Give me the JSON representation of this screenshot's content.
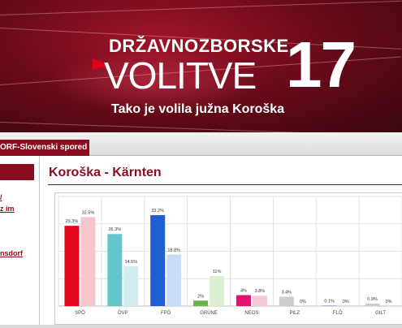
{
  "banner": {
    "line1": "DRŽAVNOZBORSKE",
    "line2": "VOLITVE",
    "year": "17",
    "subtitle": "Tako je volila južna Koroška"
  },
  "nav": {
    "tab_label": "ORF-Slovenski spored"
  },
  "sidebar": {
    "links": [
      "/",
      "z im",
      "nsdorf"
    ]
  },
  "main": {
    "title": "Koroška - Kärnten"
  },
  "colors": {
    "brand": "#8a0d1f",
    "SPÖ_2017": "#e30a1d",
    "SPÖ_2013": "#f7c6cc",
    "ÖVP_2017": "#63c6cc",
    "ÖVP_2013": "#d3eef0",
    "FPÖ_2017": "#1f5fd1",
    "FPÖ_2013": "#c9dcf5",
    "GRÜNE_2017": "#6ab24f",
    "GRÜNE_2013": "#dcefd3",
    "NEOS_2017": "#e0146f",
    "NEOS_2013": "#f6c8dc",
    "FLÖ_2017": "#2d3fb0"
  },
  "chart_data": {
    "type": "bar",
    "categories": [
      "SPÖ",
      "ÖVP",
      "FPÖ",
      "GRÜNE",
      "NEOS",
      "PILZ",
      "FLÖ",
      "GILT"
    ],
    "series": [
      {
        "values": [
          29.3,
          26.3,
          33.2,
          2.0,
          4.0,
          3.4,
          0.1,
          0.9
        ],
        "labels": [
          "29.3%",
          "26.3%",
          "33.2%",
          "2%",
          "4%",
          "3.4%",
          "0.1%",
          "0.9%"
        ]
      },
      {
        "values": [
          32.5,
          14.5,
          18.8,
          11.0,
          3.8,
          0.0,
          0.0,
          0.0
        ],
        "labels": [
          "32.5%",
          "14.5%",
          "18.8%",
          "11%",
          "3.8%",
          "0%",
          "0%",
          "0%"
        ]
      }
    ],
    "ylim": [
      0,
      40
    ],
    "grid": true
  }
}
